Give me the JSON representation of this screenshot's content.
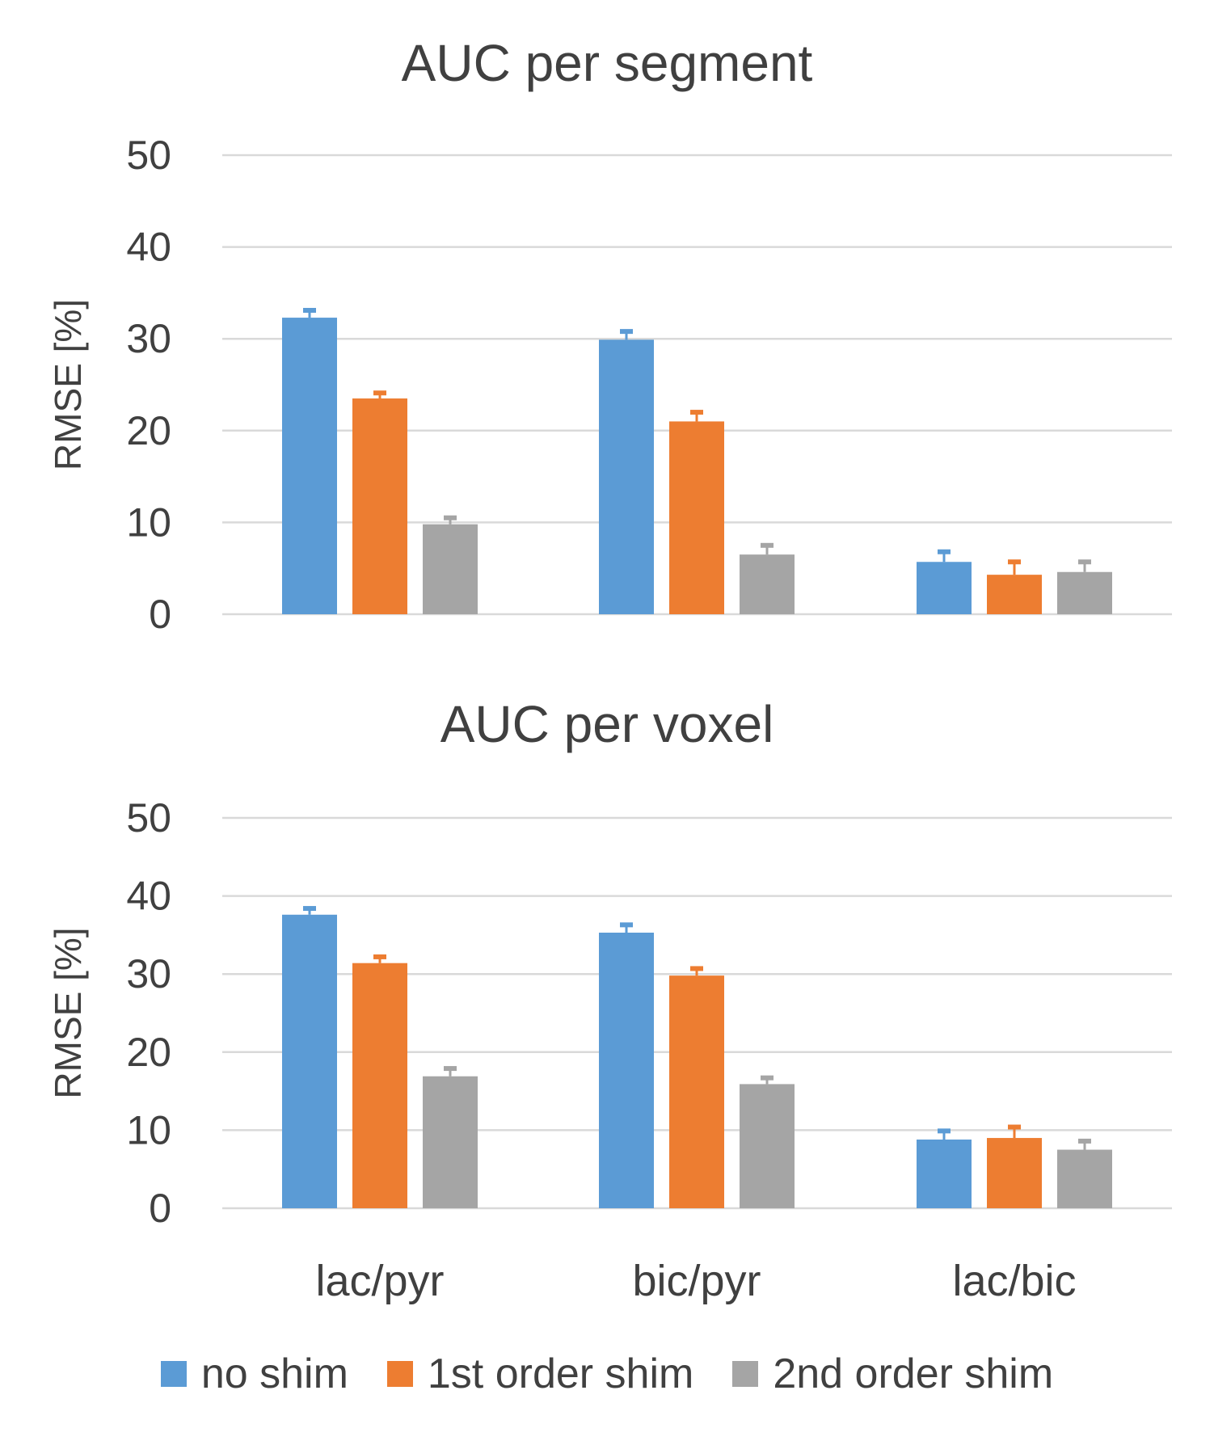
{
  "colors": {
    "series": [
      "#5B9BD5",
      "#ED7D31",
      "#A5A5A5"
    ],
    "grid": "#D9D9D9",
    "text": "#404040"
  },
  "legend": {
    "items": [
      "no shim",
      "1st order shim",
      "2nd order shim"
    ]
  },
  "chart_data": [
    {
      "type": "bar",
      "title": "AUC per segment",
      "ylabel": "RMSE  [%]",
      "xlabel": "",
      "ylim": [
        0,
        50
      ],
      "yticks": [
        0,
        10,
        20,
        30,
        40,
        50
      ],
      "categories": [
        "lac/pyr",
        "bic/pyr",
        "lac/bic"
      ],
      "show_category_labels": false,
      "series": [
        {
          "name": "no shim",
          "values": [
            32.3,
            29.9,
            5.7
          ],
          "errors": [
            0.8,
            0.9,
            1.1
          ]
        },
        {
          "name": "1st order shim",
          "values": [
            23.5,
            21.0,
            4.3
          ],
          "errors": [
            0.6,
            1.0,
            1.4
          ]
        },
        {
          "name": "2nd order shim",
          "values": [
            9.8,
            6.5,
            4.6
          ],
          "errors": [
            0.7,
            1.0,
            1.1
          ]
        }
      ]
    },
    {
      "type": "bar",
      "title": "AUC per voxel",
      "ylabel": "RMSE  [%]",
      "xlabel": "",
      "ylim": [
        0,
        50
      ],
      "yticks": [
        0,
        10,
        20,
        30,
        40,
        50
      ],
      "categories": [
        "lac/pyr",
        "bic/pyr",
        "lac/bic"
      ],
      "show_category_labels": true,
      "series": [
        {
          "name": "no shim",
          "values": [
            37.6,
            35.3,
            8.8
          ],
          "errors": [
            0.8,
            1.0,
            1.1
          ]
        },
        {
          "name": "1st order shim",
          "values": [
            31.4,
            29.8,
            9.0
          ],
          "errors": [
            0.8,
            0.9,
            1.4
          ]
        },
        {
          "name": "2nd order shim",
          "values": [
            16.9,
            15.9,
            7.5
          ],
          "errors": [
            1.0,
            0.8,
            1.1
          ]
        }
      ]
    }
  ]
}
